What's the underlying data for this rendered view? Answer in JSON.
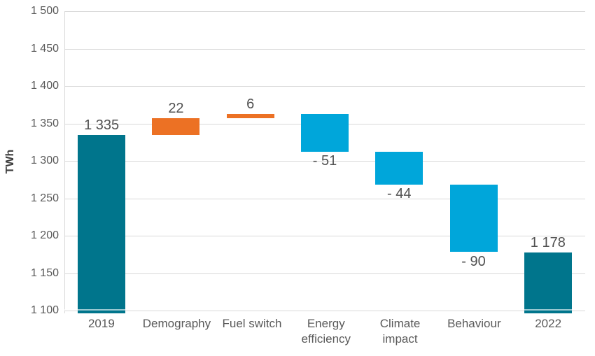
{
  "chart_data": {
    "type": "waterfall",
    "title": "",
    "xlabel": "",
    "ylabel": "TWh",
    "ylim": [
      1100,
      1500
    ],
    "ytick_step": 50,
    "yticks": [
      "1 500",
      "1 450",
      "1 400",
      "1 350",
      "1 300",
      "1 250",
      "1 200",
      "1 150",
      "1 100"
    ],
    "categories": [
      "2019",
      "Demography",
      "Fuel switch",
      "Energy efficiency",
      "Climate impact",
      "Behaviour",
      "2022"
    ],
    "bars": [
      {
        "category": "2019",
        "role": "total",
        "value": 1335,
        "start": 1100,
        "end": 1335,
        "label": "1 335",
        "label_position": "above"
      },
      {
        "category": "Demography",
        "role": "increase",
        "value": 22,
        "start": 1335,
        "end": 1357,
        "label": "22",
        "label_position": "above"
      },
      {
        "category": "Fuel switch",
        "role": "increase",
        "value": 6,
        "start": 1357,
        "end": 1363,
        "label": "6",
        "label_position": "above"
      },
      {
        "category": "Energy efficiency",
        "role": "decrease",
        "value": -51,
        "start": 1363,
        "end": 1312,
        "label": "- 51",
        "label_position": "below"
      },
      {
        "category": "Climate impact",
        "role": "decrease",
        "value": -44,
        "start": 1312,
        "end": 1268,
        "label": "- 44",
        "label_position": "below"
      },
      {
        "category": "Behaviour",
        "role": "decrease",
        "value": -90,
        "start": 1268,
        "end": 1178,
        "label": "- 90",
        "label_position": "below"
      },
      {
        "category": "2022",
        "role": "total",
        "value": 1178,
        "start": 1100,
        "end": 1178,
        "label": "1 178",
        "label_position": "above"
      }
    ],
    "colors": {
      "total": "#00758C",
      "increase": "#EC7124",
      "decrease": "#00A6DA"
    },
    "grid": true,
    "legend": false
  }
}
